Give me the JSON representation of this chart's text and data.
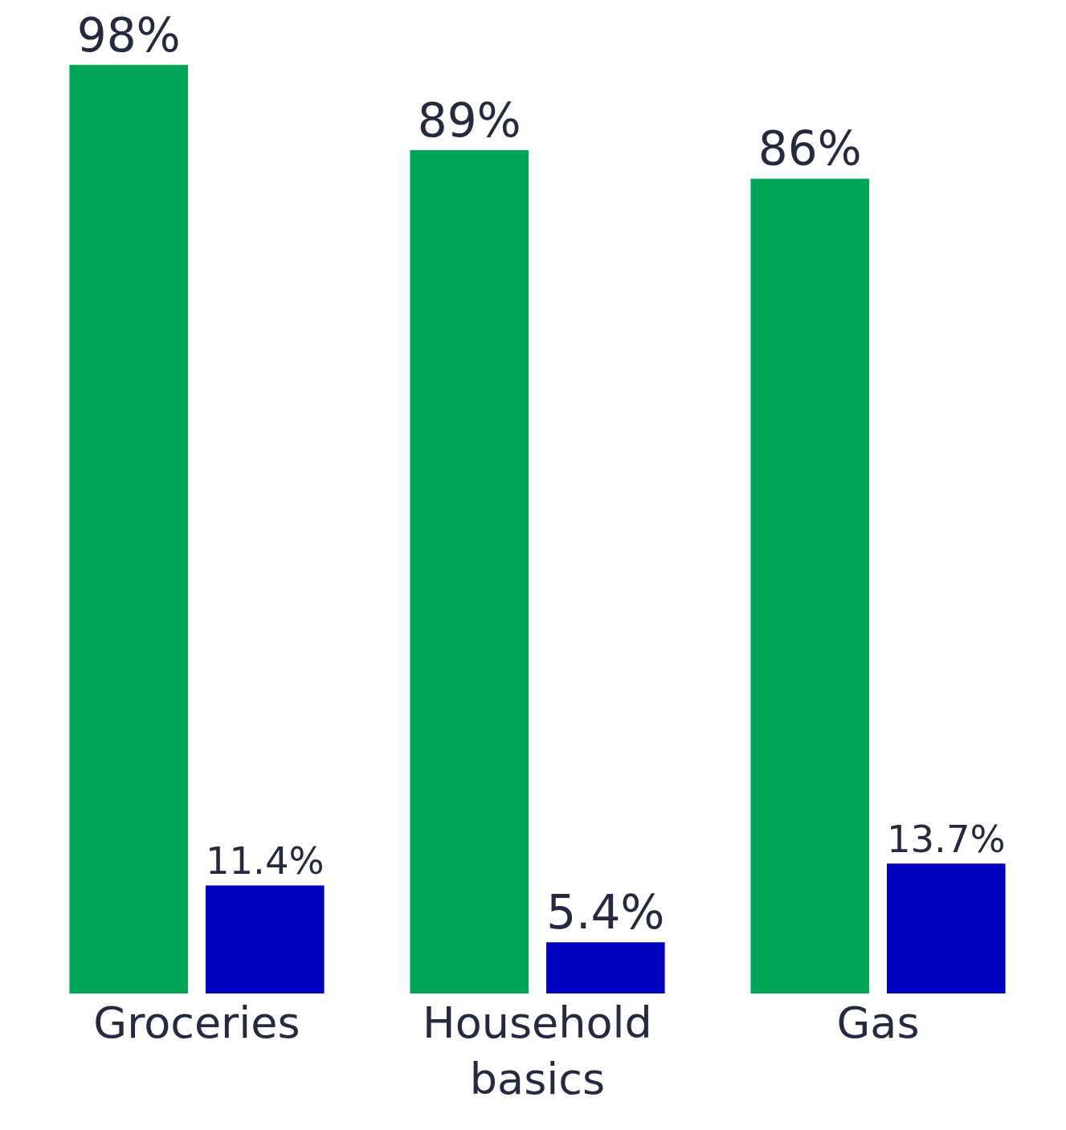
{
  "chart_data": {
    "type": "bar",
    "categories": [
      "Groceries",
      "Household basics",
      "Gas"
    ],
    "series": [
      {
        "color": "#00a658",
        "values": [
          98,
          89,
          86
        ],
        "value_labels": [
          "98%",
          "89%",
          "86%"
        ]
      },
      {
        "color": "#0000bf",
        "values": [
          11.4,
          5.4,
          13.7
        ],
        "value_labels": [
          "11.4%",
          "5.4%",
          "13.7%"
        ]
      }
    ]
  }
}
